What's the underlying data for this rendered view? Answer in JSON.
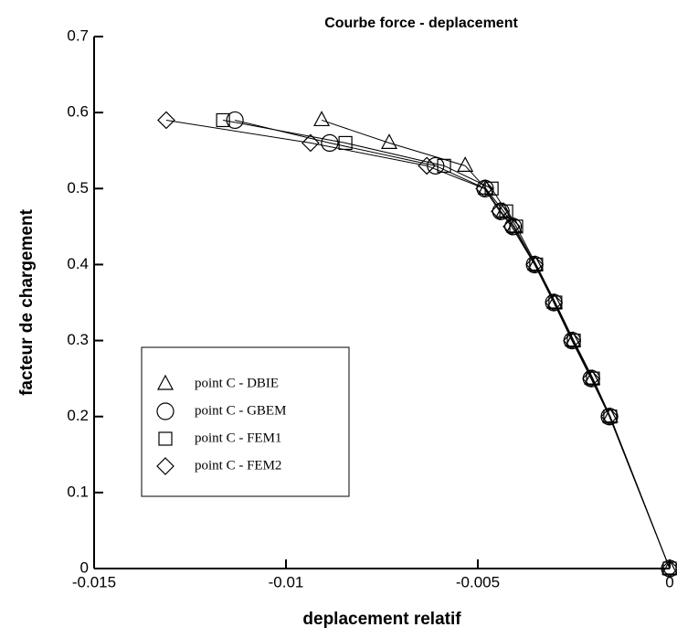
{
  "chart_data": {
    "type": "line",
    "title": "Courbe force - deplacement",
    "xlabel": "deplacement relatif",
    "ylabel": "facteur de chargement",
    "xlim": [
      -0.015,
      0
    ],
    "ylim": [
      0,
      0.7
    ],
    "xticks": [
      -0.015,
      -0.01,
      -0.005,
      0
    ],
    "yticks": [
      0,
      0.1,
      0.2,
      0.3,
      0.4,
      0.5,
      0.6,
      0.7
    ],
    "legend": "lower left",
    "series": [
      {
        "name": "point C - DBIE",
        "color": "#000000",
        "marker": "triangle",
        "x": [
          -0.00907,
          -0.00731,
          -0.00533,
          -0.00479,
          -0.00433,
          -0.00405,
          -0.0035,
          -0.003,
          -0.00252,
          -0.00202,
          -0.00155,
          0
        ],
        "values": [
          0.59,
          0.56,
          0.53,
          0.5,
          0.47,
          0.45,
          0.4,
          0.35,
          0.3,
          0.25,
          0.2,
          0
        ]
      },
      {
        "name": "point C - GBEM",
        "color": "#000000",
        "marker": "circle",
        "x": [
          -0.01133,
          -0.00886,
          -0.0061,
          -0.00481,
          -0.0044,
          -0.00408,
          -0.00352,
          -0.00302,
          -0.00254,
          -0.00204,
          -0.00157,
          0
        ],
        "values": [
          0.59,
          0.56,
          0.53,
          0.5,
          0.47,
          0.45,
          0.4,
          0.35,
          0.3,
          0.25,
          0.2,
          0
        ]
      },
      {
        "name": "point C - FEM1",
        "color": "#000000",
        "marker": "square",
        "x": [
          -0.01164,
          -0.00845,
          -0.00588,
          -0.00464,
          -0.00426,
          -0.004,
          -0.00348,
          -0.00298,
          -0.0025,
          -0.002,
          -0.00155,
          0
        ],
        "values": [
          0.59,
          0.56,
          0.53,
          0.5,
          0.47,
          0.45,
          0.4,
          0.35,
          0.3,
          0.25,
          0.2,
          0
        ]
      },
      {
        "name": "point C - FEM2",
        "color": "#000000",
        "marker": "diamond",
        "x": [
          -0.01312,
          -0.00936,
          -0.00633,
          -0.00483,
          -0.00443,
          -0.00412,
          -0.00352,
          -0.00302,
          -0.00255,
          -0.00205,
          -0.00157,
          0
        ],
        "values": [
          0.59,
          0.56,
          0.53,
          0.5,
          0.47,
          0.45,
          0.4,
          0.35,
          0.3,
          0.25,
          0.2,
          0
        ]
      }
    ]
  }
}
